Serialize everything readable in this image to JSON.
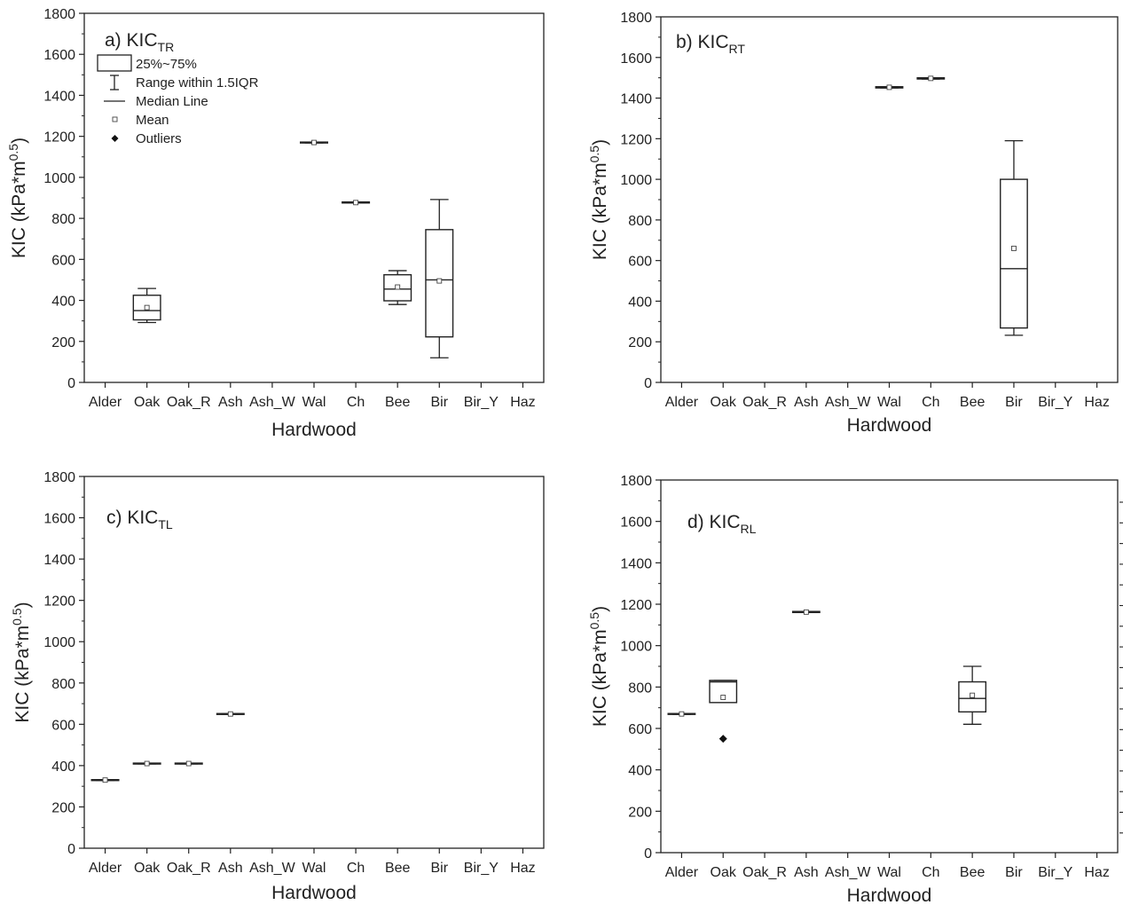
{
  "chart_data": [
    {
      "id": "a",
      "type": "box",
      "title": "a) KIC",
      "title_sub": "TR",
      "xlabel": "Hardwood",
      "ylabel_main": "KIC (kPa*m",
      "ylabel_sup": "0.5",
      "ylabel_tail": ")",
      "ylim": [
        0,
        1800
      ],
      "yticks": [
        "0",
        "200",
        "400",
        "600",
        "800",
        "1000",
        "1200",
        "1400",
        "1600",
        "1800"
      ],
      "categories": [
        "Alder",
        "Oak",
        "Oak_R",
        "Ash",
        "Ash_W",
        "Wal",
        "Ch",
        "Bee",
        "Bir",
        "Bir_Y",
        "Haz"
      ],
      "legend": {
        "box_label": "25%~75%",
        "whisker_label": "Range within 1.5IQR",
        "median_label": "Median Line",
        "mean_label": "Mean",
        "outlier_label": "Outliers"
      },
      "boxes": [
        {
          "category": "Oak",
          "q1": 305,
          "median": 350,
          "q3": 425,
          "low": 292,
          "high": 458,
          "mean": 365
        },
        {
          "category": "Wal",
          "q1": 1168,
          "median": 1170,
          "q3": 1172,
          "low": 1168,
          "high": 1172,
          "mean": 1170
        },
        {
          "category": "Ch",
          "q1": 875,
          "median": 877,
          "q3": 880,
          "low": 875,
          "high": 880,
          "mean": 877
        },
        {
          "category": "Bee",
          "q1": 398,
          "median": 455,
          "q3": 525,
          "low": 380,
          "high": 545,
          "mean": 465
        },
        {
          "category": "Bir",
          "q1": 222,
          "median": 500,
          "q3": 745,
          "low": 120,
          "high": 892,
          "mean": 495
        }
      ],
      "outliers": []
    },
    {
      "id": "b",
      "type": "box",
      "title": "b) KIC",
      "title_sub": "RT",
      "xlabel": "Hardwood",
      "ylabel_main": "KIC (kPa*m",
      "ylabel_sup": "0.5",
      "ylabel_tail": ")",
      "ylim": [
        0,
        1800
      ],
      "yticks": [
        "0",
        "200",
        "400",
        "600",
        "800",
        "1000",
        "1200",
        "1400",
        "1600",
        "1800"
      ],
      "categories": [
        "Alder",
        "Oak",
        "Oak_R",
        "Ash",
        "Ash_W",
        "Wal",
        "Ch",
        "Bee",
        "Bir",
        "Bir_Y",
        "Haz"
      ],
      "boxes": [
        {
          "category": "Wal",
          "q1": 1450,
          "median": 1453,
          "q3": 1456,
          "low": 1450,
          "high": 1456,
          "mean": 1453
        },
        {
          "category": "Ch",
          "q1": 1494,
          "median": 1497,
          "q3": 1500,
          "low": 1494,
          "high": 1500,
          "mean": 1497
        },
        {
          "category": "Bir",
          "q1": 268,
          "median": 560,
          "q3": 1000,
          "low": 232,
          "high": 1190,
          "mean": 660
        }
      ],
      "outliers": []
    },
    {
      "id": "c",
      "type": "box",
      "title": "c) KIC",
      "title_sub": "TL",
      "xlabel": "Hardwood",
      "ylabel_main": "KIC (kPa*m",
      "ylabel_sup": "0.5",
      "ylabel_tail": ")",
      "ylim": [
        0,
        1800
      ],
      "yticks": [
        "0",
        "200",
        "400",
        "600",
        "800",
        "1000",
        "1200",
        "1400",
        "1600",
        "1800"
      ],
      "categories": [
        "Alder",
        "Oak",
        "Oak_R",
        "Ash",
        "Ash_W",
        "Wal",
        "Ch",
        "Bee",
        "Bir",
        "Bir_Y",
        "Haz"
      ],
      "boxes": [
        {
          "category": "Alder",
          "q1": 328,
          "median": 330,
          "q3": 332,
          "low": 328,
          "high": 332,
          "mean": 330
        },
        {
          "category": "Oak",
          "q1": 408,
          "median": 410,
          "q3": 412,
          "low": 408,
          "high": 412,
          "mean": 410
        },
        {
          "category": "Oak_R",
          "q1": 408,
          "median": 410,
          "q3": 412,
          "low": 408,
          "high": 412,
          "mean": 410
        },
        {
          "category": "Ash",
          "q1": 648,
          "median": 650,
          "q3": 652,
          "low": 648,
          "high": 652,
          "mean": 650
        }
      ],
      "outliers": []
    },
    {
      "id": "d",
      "type": "box",
      "title": "d) KIC",
      "title_sub": "RL",
      "xlabel": "Hardwood",
      "ylabel_main": "KIC (kPa*m",
      "ylabel_sup": "0.5",
      "ylabel_tail": ")",
      "ylim": [
        0,
        1800
      ],
      "yticks": [
        "0",
        "200",
        "400",
        "600",
        "800",
        "1000",
        "1200",
        "1400",
        "1600",
        "1800"
      ],
      "categories": [
        "Alder",
        "Oak",
        "Oak_R",
        "Ash",
        "Ash_W",
        "Wal",
        "Ch",
        "Bee",
        "Bir",
        "Bir_Y",
        "Haz"
      ],
      "boxes": [
        {
          "category": "Alder",
          "q1": 668,
          "median": 670,
          "q3": 672,
          "low": 668,
          "high": 672,
          "mean": 670
        },
        {
          "category": "Oak",
          "q1": 725,
          "median": 825,
          "q3": 832,
          "low": 725,
          "high": 832,
          "mean": 750
        },
        {
          "category": "Ash",
          "q1": 1160,
          "median": 1162,
          "q3": 1165,
          "low": 1160,
          "high": 1165,
          "mean": 1162
        },
        {
          "category": "Bee",
          "q1": 680,
          "median": 745,
          "q3": 825,
          "low": 620,
          "high": 900,
          "mean": 760
        }
      ],
      "outliers": [
        {
          "category": "Oak",
          "value": 550
        }
      ]
    }
  ]
}
